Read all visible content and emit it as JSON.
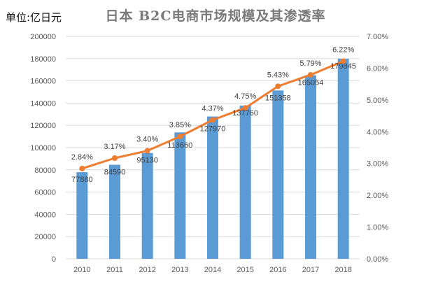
{
  "colors": {
    "bar": "#5b9bd5",
    "line": "#ed7d31",
    "grid": "#d9d9d9",
    "axis_text": "#595959",
    "label_text": "#404040"
  },
  "chart_data": {
    "type": "bar",
    "title": "日本 B2C电商市场规模及其渗透率",
    "unit_label": "单位:亿日元",
    "xlabel": "",
    "ylabel": "",
    "categories": [
      "2010",
      "2011",
      "2012",
      "2013",
      "2014",
      "2015",
      "2016",
      "2017",
      "2018"
    ],
    "series": [
      {
        "name": "B2C电商市场规模",
        "type": "bar",
        "axis": "left",
        "values": [
          77880,
          84590,
          95130,
          113660,
          127970,
          137760,
          151358,
          165054,
          179845
        ],
        "labels": [
          "77880",
          "84590",
          "95130",
          "113660",
          "127970",
          "137760",
          "151358",
          "165054",
          "179845"
        ]
      },
      {
        "name": "渗透率",
        "type": "line",
        "axis": "right",
        "values": [
          2.84,
          3.17,
          3.4,
          3.85,
          4.37,
          4.75,
          5.43,
          5.79,
          6.22
        ],
        "labels": [
          "2.84%",
          "3.17%",
          "3.40%",
          "3.85%",
          "4.37%",
          "4.75%",
          "5.43%",
          "5.79%",
          "6.22%"
        ]
      }
    ],
    "ylim": [
      0,
      200000
    ],
    "y_ticks": [
      "0",
      "20000",
      "40000",
      "60000",
      "80000",
      "100000",
      "120000",
      "140000",
      "160000",
      "180000",
      "200000"
    ],
    "y2lim": [
      0,
      7
    ],
    "y2_ticks": [
      "0.00%",
      "1.00%",
      "2.00%",
      "3.00%",
      "4.00%",
      "5.00%",
      "6.00%",
      "7.00%"
    ],
    "grid": true,
    "legend": "none"
  }
}
